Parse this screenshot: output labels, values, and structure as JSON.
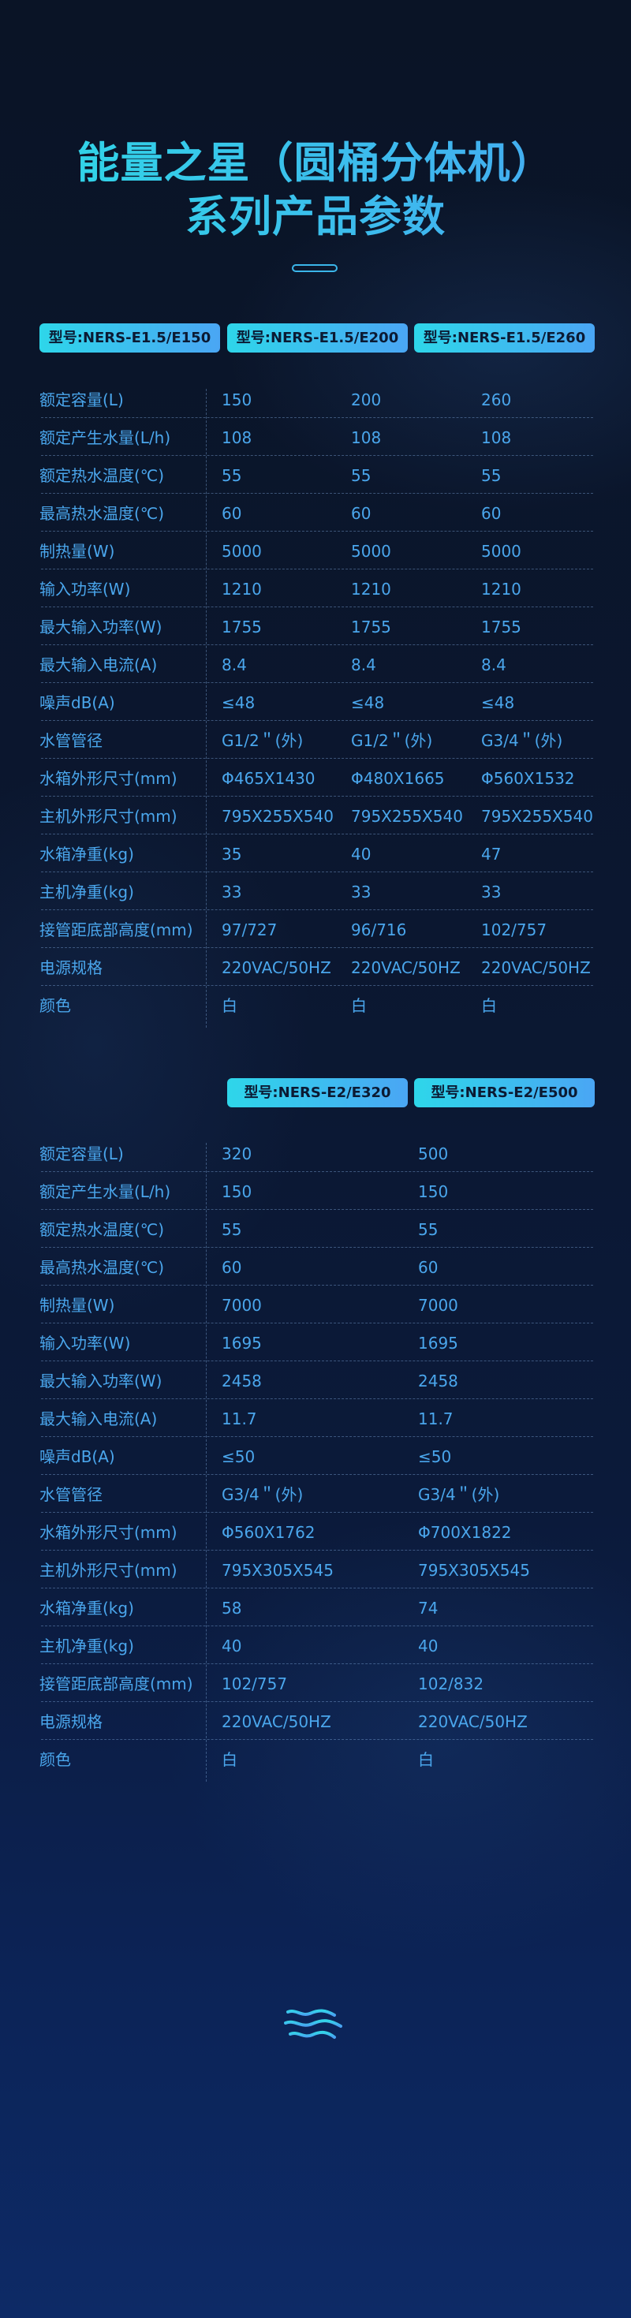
{
  "header": {
    "title_line1": "能量之星（圆桶分体机）",
    "title_line2": "系列产品参数"
  },
  "colors": {
    "accent_cyan": "#2fd9e6",
    "accent_blue": "#46a6f2",
    "text": "#4aa6ec",
    "background": "#0a1426"
  },
  "labels": [
    "额定容量(L)",
    "额定产生水量(L/h)",
    "额定热水温度(℃)",
    "最高热水温度(℃)",
    "制热量(W)",
    "输入功率(W)",
    "最大输入功率(W)",
    "最大输入电流(A)",
    "噪声dB(A)",
    "水管管径",
    "水箱外形尺寸(mm)",
    "主机外形尺寸(mm)",
    "水箱净重(kg)",
    "主机净重(kg)",
    "接管距底部高度(mm)",
    "电源规格",
    "颜色"
  ],
  "tables": [
    {
      "models": [
        "型号:NERS-E1.5/E150",
        "型号:NERS-E1.5/E200",
        "型号:NERS-E1.5/E260"
      ],
      "columns": [
        [
          "150",
          "108",
          "55",
          "60",
          "5000",
          "1210",
          "1755",
          "8.4",
          "≤48",
          "G1/2＂(外)",
          "Φ465X1430",
          "795X255X540",
          "35",
          "33",
          "97/727",
          "220VAC/50HZ",
          "白"
        ],
        [
          "200",
          "108",
          "55",
          "60",
          "5000",
          "1210",
          "1755",
          "8.4",
          "≤48",
          "G1/2＂(外)",
          "Φ480X1665",
          "795X255X540",
          "40",
          "33",
          "96/716",
          "220VAC/50HZ",
          "白"
        ],
        [
          "260",
          "108",
          "55",
          "60",
          "5000",
          "1210",
          "1755",
          "8.4",
          "≤48",
          "G3/4＂(外)",
          "Φ560X1532",
          "795X255X540",
          "47",
          "33",
          "102/757",
          "220VAC/50HZ",
          "白"
        ]
      ]
    },
    {
      "models": [
        "型号:NERS-E2/E320",
        "型号:NERS-E2/E500"
      ],
      "columns": [
        [
          "320",
          "150",
          "55",
          "60",
          "7000",
          "1695",
          "2458",
          "11.7",
          "≤50",
          "G3/4＂(外)",
          "Φ560X1762",
          "795X305X545",
          "58",
          "40",
          "102/757",
          "220VAC/50HZ",
          "白"
        ],
        [
          "500",
          "150",
          "55",
          "60",
          "7000",
          "1695",
          "2458",
          "11.7",
          "≤50",
          "G3/4＂(外)",
          "Φ700X1822",
          "795X305X545",
          "74",
          "40",
          "102/832",
          "220VAC/50HZ",
          "白"
        ]
      ]
    }
  ],
  "footer": {
    "icon": "water-waves-icon"
  }
}
